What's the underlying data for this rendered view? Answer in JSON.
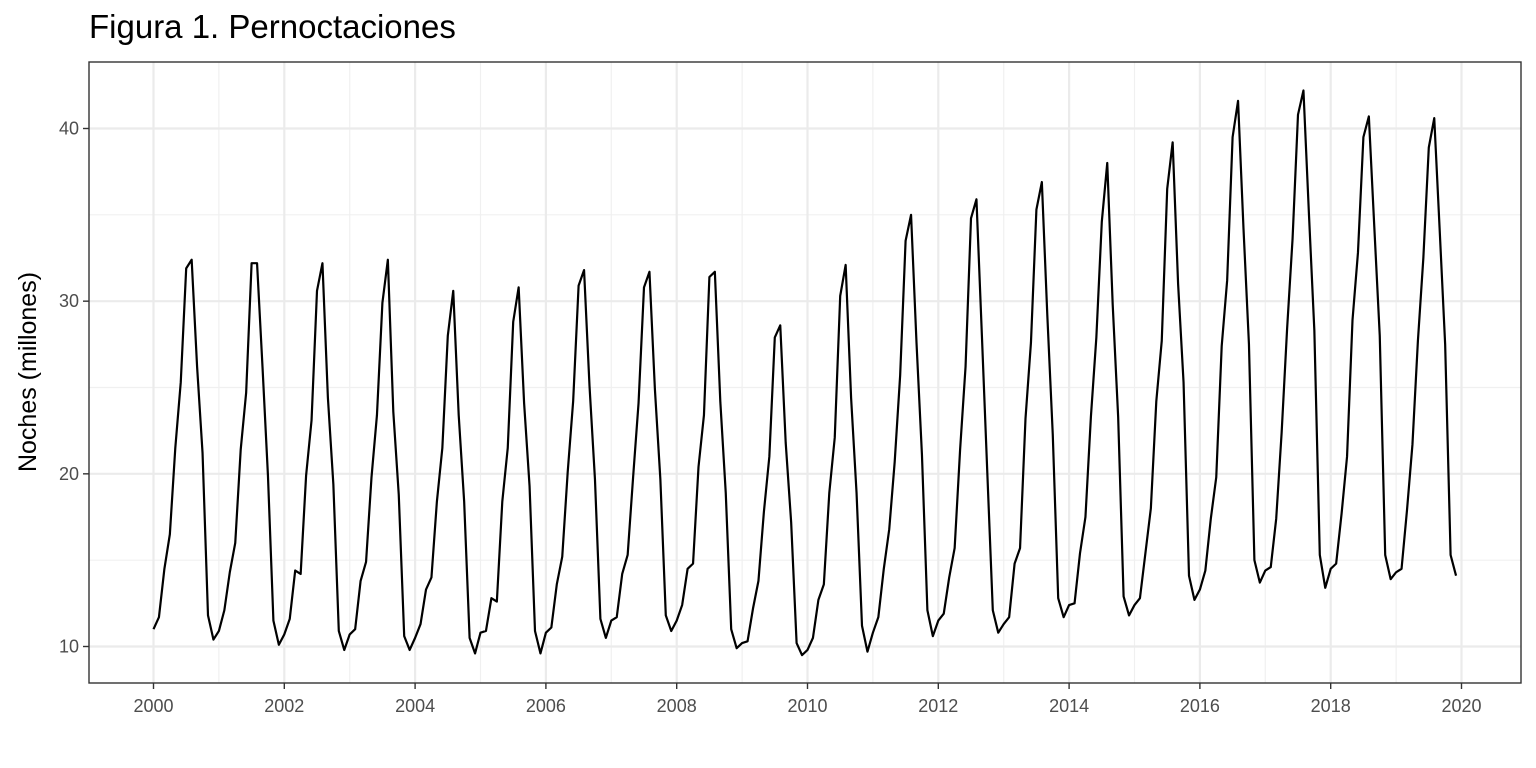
{
  "chart_data": {
    "type": "line",
    "title": "Figura 1. Pernoctaciones",
    "xlabel": "",
    "ylabel": "Noches (millones)",
    "xlim": [
      2000,
      2020
    ],
    "ylim": [
      8,
      44
    ],
    "x_ticks": [
      2000,
      2002,
      2004,
      2006,
      2008,
      2010,
      2012,
      2014,
      2016,
      2018,
      2020
    ],
    "x_tick_labels": [
      "2000",
      "2002",
      "2004",
      "2006",
      "2008",
      "2010",
      "2012",
      "2014",
      "2016",
      "2018",
      "2020"
    ],
    "y_ticks": [
      10,
      20,
      30,
      40
    ],
    "y_tick_labels": [
      "10",
      "20",
      "30",
      "40"
    ],
    "grid": true,
    "legend": "none",
    "line_color": "#000000",
    "series": [
      {
        "start": "2000-01",
        "frequency": "monthly",
        "values": [
          11.0,
          11.7,
          14.5,
          16.5,
          21.5,
          25.3,
          31.9,
          32.4,
          26.2,
          21.2,
          11.8,
          10.4,
          10.9,
          12.1,
          14.3,
          16.0,
          21.4,
          24.7,
          32.2,
          32.2,
          26.2,
          19.9,
          11.5,
          10.1,
          10.7,
          11.6,
          14.4,
          14.2,
          19.9,
          23.1,
          30.6,
          32.2,
          24.4,
          19.4,
          10.9,
          9.8,
          10.7,
          11.0,
          13.8,
          14.9,
          19.8,
          23.4,
          29.9,
          32.4,
          23.6,
          18.8,
          10.6,
          9.8,
          10.5,
          11.3,
          13.3,
          14.0,
          18.4,
          21.5,
          28.0,
          30.6,
          23.4,
          18.4,
          10.5,
          9.6,
          10.8,
          10.9,
          12.8,
          12.6,
          18.4,
          21.5,
          28.8,
          30.8,
          24.1,
          19.3,
          10.9,
          9.6,
          10.8,
          11.1,
          13.6,
          15.2,
          20.1,
          24.2,
          30.9,
          31.8,
          25.1,
          19.7,
          11.6,
          10.5,
          11.5,
          11.7,
          14.2,
          15.3,
          19.8,
          24.1,
          30.8,
          31.7,
          24.9,
          19.7,
          11.8,
          10.9,
          11.5,
          12.4,
          14.5,
          14.8,
          20.4,
          23.4,
          31.4,
          31.7,
          24.2,
          18.9,
          11.0,
          9.9,
          10.2,
          10.3,
          12.2,
          13.8,
          17.8,
          21.0,
          27.9,
          28.6,
          21.8,
          17.2,
          10.2,
          9.5,
          9.8,
          10.5,
          12.7,
          13.6,
          18.9,
          22.1,
          30.3,
          32.1,
          24.4,
          18.9,
          11.2,
          9.7,
          10.8,
          11.7,
          14.5,
          16.8,
          20.7,
          25.7,
          33.5,
          35.0,
          27.6,
          21.1,
          12.1,
          10.6,
          11.5,
          11.9,
          14.0,
          15.7,
          21.4,
          26.2,
          34.8,
          35.9,
          28.0,
          20.0,
          12.1,
          10.8,
          11.3,
          11.7,
          14.8,
          15.7,
          23.2,
          27.6,
          35.3,
          36.9,
          29.2,
          22.3,
          12.8,
          11.7,
          12.4,
          12.5,
          15.4,
          17.5,
          23.3,
          27.9,
          34.6,
          38.0,
          29.8,
          23.3,
          12.9,
          11.8,
          12.4,
          12.8,
          15.4,
          18.0,
          24.2,
          27.7,
          36.5,
          39.2,
          31.0,
          25.3,
          14.1,
          12.7,
          13.3,
          14.4,
          17.4,
          19.8,
          27.4,
          31.2,
          39.5,
          41.6,
          34.2,
          27.5,
          15.0,
          13.7,
          14.4,
          14.6,
          17.4,
          22.4,
          28.4,
          33.6,
          40.8,
          42.2,
          35.1,
          28.3,
          15.3,
          13.4,
          14.5,
          14.8,
          17.7,
          21.0,
          28.9,
          32.8,
          39.5,
          40.7,
          34.3,
          28.0,
          15.3,
          13.9,
          14.3,
          14.5,
          17.9,
          21.7,
          27.7,
          32.5,
          38.9,
          40.6,
          34.1,
          27.5,
          15.3,
          14.1
        ]
      }
    ]
  }
}
